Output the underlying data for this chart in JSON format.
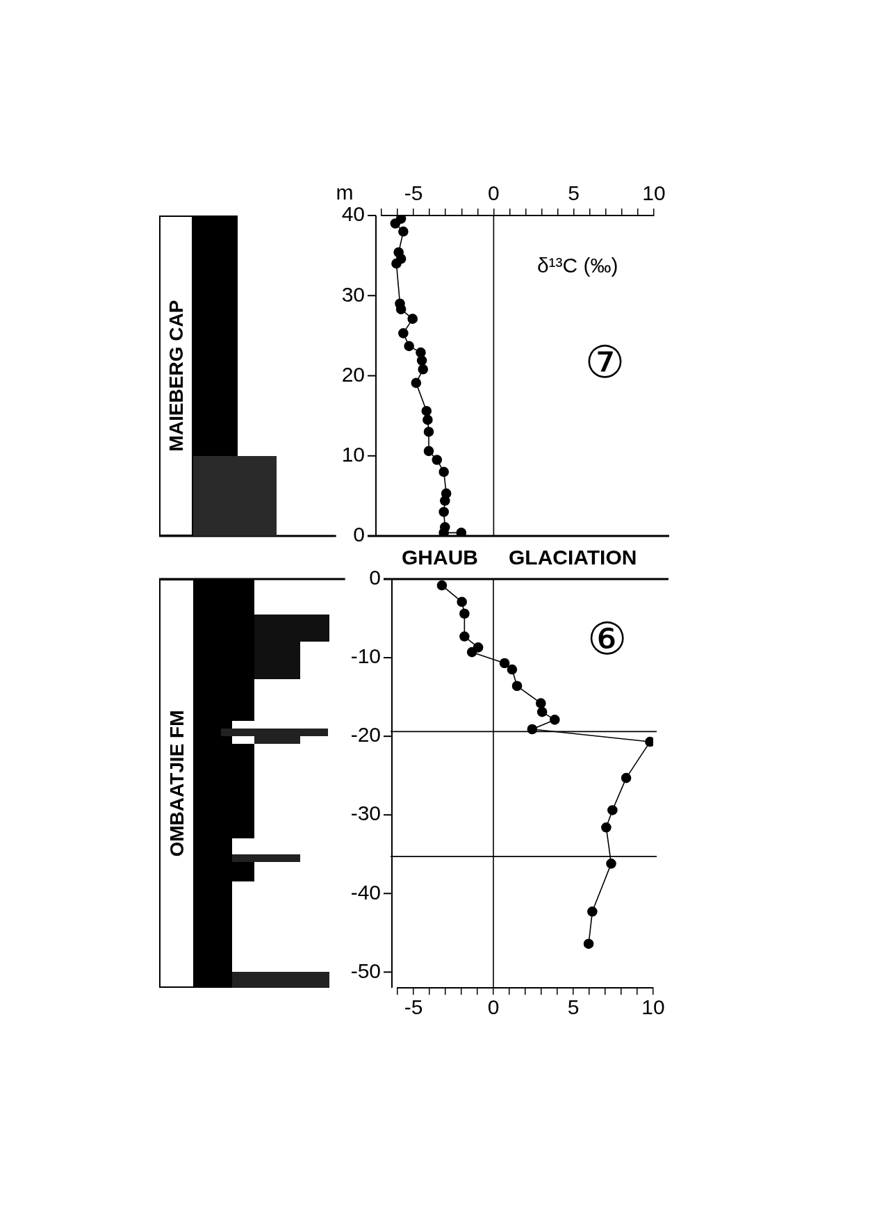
{
  "chart_data": [
    {
      "type": "line",
      "xlabel": "δ¹³C (‰)",
      "ylabel": "m",
      "xlim": [
        -7,
        10
      ],
      "xticks": [
        {
          "value": -7,
          "label": null
        },
        {
          "value": -6,
          "label": null
        },
        -5,
        {
          "value": -4,
          "label": null
        },
        {
          "value": -3,
          "label": null
        },
        {
          "value": -2,
          "label": null
        },
        {
          "value": -1,
          "label": null
        },
        0,
        {
          "value": 1,
          "label": null
        },
        {
          "value": 2,
          "label": null
        },
        {
          "value": 3,
          "label": null
        },
        {
          "value": 4,
          "label": null
        },
        5,
        {
          "value": 6,
          "label": null
        },
        {
          "value": 7,
          "label": null
        },
        {
          "value": 8,
          "label": null
        },
        {
          "value": 9,
          "label": null
        },
        10
      ],
      "ylim": [
        0,
        40
      ],
      "yticks": [
        0,
        10,
        20,
        30,
        40
      ],
      "marker": "circle",
      "line_style": "solid",
      "ref_lines": [
        {
          "axis": "x",
          "value": 0
        }
      ],
      "annotations": [
        "MAIEBERG CAP",
        "⑦"
      ],
      "series": [
        {
          "color": "#000000",
          "x": [
            -5.78,
            -6.14,
            -5.64,
            -5.93,
            -5.78,
            -6.07,
            -5.85,
            -5.78,
            -5.06,
            -5.64,
            -5.28,
            -4.55,
            -4.48,
            -4.41,
            -4.84,
            -4.19,
            -4.12,
            -4.05,
            -4.05,
            -3.54,
            -3.11,
            -2.96,
            -3.04,
            -3.11,
            -3.04,
            -3.11,
            -2.02
          ],
          "values": [
            39.6,
            39.0,
            38.0,
            35.4,
            34.6,
            34.0,
            29.0,
            28.3,
            27.1,
            25.3,
            23.7,
            22.9,
            21.9,
            20.8,
            19.1,
            15.6,
            14.5,
            13.0,
            10.6,
            9.5,
            8.0,
            5.3,
            4.4,
            3.0,
            1.1,
            0.4,
            0.4
          ]
        }
      ]
    },
    {
      "type": "line",
      "xlim": [
        -6,
        10
      ],
      "xticks": [
        {
          "value": -6,
          "label": null
        },
        -5,
        {
          "value": -4,
          "label": null
        },
        {
          "value": -3,
          "label": null
        },
        {
          "value": -2,
          "label": null
        },
        {
          "value": -1,
          "label": null
        },
        0,
        {
          "value": 1,
          "label": null
        },
        {
          "value": 2,
          "label": null
        },
        {
          "value": 3,
          "label": null
        },
        {
          "value": 4,
          "label": null
        },
        5,
        {
          "value": 6,
          "label": null
        },
        {
          "value": 7,
          "label": null
        },
        {
          "value": 8,
          "label": null
        },
        {
          "value": 9,
          "label": null
        },
        10
      ],
      "ylim": [
        -52,
        0
      ],
      "yticks": [
        0,
        -10,
        -20,
        -30,
        -40,
        -50
      ],
      "marker": "circle",
      "line_style": "solid",
      "ref_lines": [
        {
          "axis": "x",
          "value": 0
        },
        {
          "axis": "y",
          "value": -19.4
        },
        {
          "axis": "y",
          "value": -35.3
        }
      ],
      "annotations": [
        "OMBAATJIE FM",
        "⑥",
        "GHAUB",
        "GLACIATION"
      ],
      "series": [
        {
          "color": "#000000",
          "x": [
            -3.22,
            -1.97,
            -1.81,
            -1.81,
            -0.95,
            -1.34,
            0.7,
            1.17,
            1.48,
            2.97,
            3.05,
            3.84,
            2.43,
            9.8,
            8.31,
            7.45,
            7.06,
            7.37,
            6.19,
            5.96
          ],
          "values": [
            -0.8,
            -2.9,
            -4.4,
            -7.3,
            -8.7,
            -9.3,
            -10.7,
            -11.5,
            -13.6,
            -15.8,
            -16.9,
            -17.9,
            -19.1,
            -20.7,
            -25.3,
            -29.4,
            -31.6,
            -36.2,
            -42.3,
            -46.4
          ]
        }
      ]
    }
  ]
}
